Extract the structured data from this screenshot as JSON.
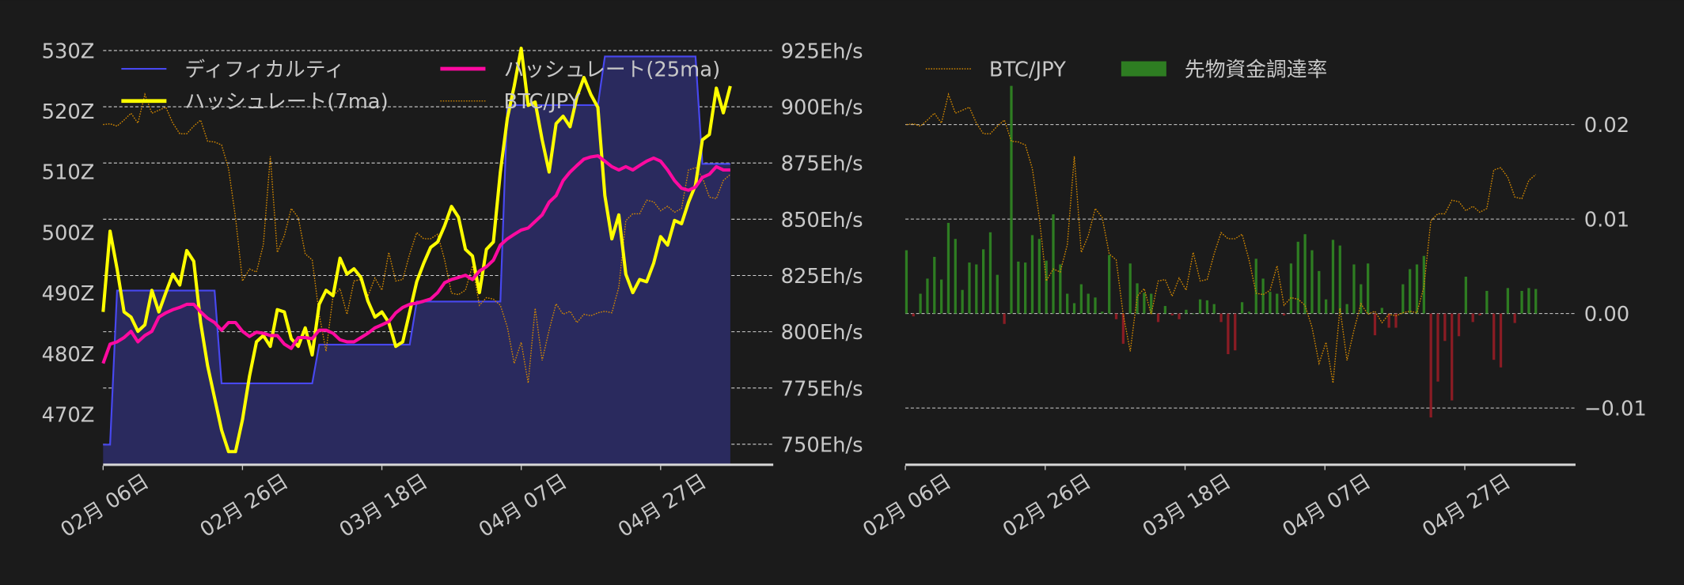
{
  "colors": {
    "background": "#1b1b1b",
    "text": "#c8c8c8",
    "difficulty_line": "#4848f0",
    "difficulty_fill": "#2a2a5e",
    "hashrate_7ma": "#ffff00",
    "hashrate_25ma": "#ff0aa0",
    "btc_jpy": "#d68a00",
    "funding_positive": "#2e7d22",
    "funding_negative": "#8a1c24"
  },
  "chart_data": [
    {
      "type": "line",
      "x": {
        "start": "02-06",
        "end": "05-07",
        "step": "1 day"
      },
      "x_ticks": [
        "02月 06日",
        "02月 26日",
        "03月 18日",
        "04月 07日",
        "04月 27日"
      ],
      "y_left": {
        "ylim": [
          461.7,
          532.1
        ],
        "ticks": [
          "470Z",
          "480Z",
          "490Z",
          "500Z",
          "510Z",
          "520Z",
          "530Z"
        ],
        "tick_values": [
          470,
          480,
          490,
          500,
          510,
          520,
          530
        ]
      },
      "y_right": {
        "ylim": [
          740.9,
          930.7
        ],
        "ticks": [
          "750Eh/s",
          "775Eh/s",
          "800Eh/s",
          "825Eh/s",
          "850Eh/s",
          "875Eh/s",
          "900Eh/s",
          "925Eh/s"
        ],
        "tick_values": [
          750,
          775,
          800,
          825,
          850,
          875,
          900,
          925
        ]
      },
      "y_btc": {
        "ylim": [
          10500000,
          16150000
        ],
        "labels_shown": false
      },
      "grid": "horizontal dashed on right axis ticks",
      "legend": {
        "placement": "top",
        "entries": [
          "ディフィカルティ",
          "ハッシュレート(7ma)",
          "ハッシュレート(25ma)",
          "BTC/JPY"
        ]
      },
      "series": [
        {
          "name": "ディフィカルティ",
          "axis": "left",
          "style": "step-area",
          "values": [
            465.0,
            465.0,
            490.4,
            490.4,
            490.4,
            490.4,
            490.4,
            490.4,
            490.4,
            490.4,
            490.4,
            490.4,
            490.4,
            490.4,
            490.4,
            490.4,
            490.4,
            475.1,
            475.1,
            475.1,
            475.1,
            475.1,
            475.1,
            475.1,
            475.1,
            475.1,
            475.1,
            475.1,
            475.1,
            475.1,
            475.1,
            481.5,
            481.5,
            481.5,
            481.5,
            481.5,
            481.5,
            481.5,
            481.5,
            481.5,
            481.5,
            481.5,
            481.5,
            481.5,
            481.5,
            488.6,
            488.6,
            488.6,
            488.6,
            488.6,
            488.6,
            488.6,
            488.6,
            488.6,
            488.6,
            488.6,
            488.6,
            488.6,
            521.0,
            521.0,
            521.0,
            521.0,
            521.0,
            521.0,
            521.0,
            521.0,
            521.0,
            521.0,
            521.0,
            521.0,
            521.0,
            521.0,
            529.0,
            529.0,
            529.0,
            529.0,
            529.0,
            529.0,
            529.0,
            529.0,
            529.0,
            529.0,
            529.0,
            529.0,
            529.0,
            529.0,
            511.3,
            511.3,
            511.3,
            511.3,
            511.3
          ]
        },
        {
          "name": "ハッシュレート(7ma)",
          "axis": "right",
          "style": "line",
          "values": [
            808.8,
            844.7,
            828.0,
            808.8,
            806.5,
            800.2,
            803.1,
            818.4,
            808.8,
            817.4,
            825.6,
            820.8,
            836.1,
            831.3,
            804.1,
            784.9,
            770.6,
            756.3,
            746.7,
            746.7,
            761.0,
            780.2,
            795.5,
            798.3,
            793.5,
            809.8,
            808.8,
            796.9,
            793.5,
            801.7,
            789.7,
            812.2,
            818.4,
            816.0,
            832.7,
            825.6,
            828.0,
            824.1,
            813.6,
            806.5,
            808.8,
            804.1,
            793.5,
            795.5,
            808.8,
            822.2,
            830.4,
            837.5,
            839.9,
            847.1,
            855.7,
            850.9,
            836.6,
            833.7,
            817.4,
            836.6,
            839.9,
            871.0,
            894.9,
            909.2,
            926.0,
            900.6,
            902.1,
            885.3,
            871.0,
            892.5,
            895.8,
            891.1,
            904.4,
            913.0,
            905.4,
            899.7,
            860.5,
            841.3,
            851.9,
            825.6,
            817.4,
            823.2,
            822.2,
            830.4,
            842.3,
            838.5,
            849.5,
            848.0,
            857.6,
            865.2,
            885.3,
            887.7,
            908.3,
            897.3,
            909.2
          ]
        },
        {
          "name": "ハッシュレート(25ma)",
          "axis": "right",
          "style": "line",
          "values": [
            785.9,
            794.5,
            795.5,
            797.4,
            800.2,
            795.5,
            798.3,
            800.2,
            806.5,
            808.4,
            809.8,
            810.8,
            812.2,
            812.2,
            808.8,
            806.0,
            804.1,
            800.7,
            804.1,
            804.1,
            800.2,
            797.9,
            799.8,
            799.3,
            798.3,
            798.3,
            794.5,
            792.6,
            797.4,
            797.4,
            796.9,
            800.7,
            800.7,
            799.3,
            796.4,
            795.5,
            795.5,
            797.4,
            799.3,
            801.7,
            803.1,
            804.5,
            808.4,
            810.8,
            812.2,
            812.7,
            813.6,
            814.6,
            817.4,
            821.8,
            823.2,
            824.1,
            825.1,
            823.2,
            827.0,
            828.9,
            831.8,
            838.5,
            841.3,
            843.3,
            845.2,
            846.1,
            849.0,
            851.9,
            857.6,
            860.5,
            867.2,
            871.0,
            873.9,
            876.7,
            877.7,
            878.2,
            875.8,
            873.4,
            871.9,
            873.4,
            871.9,
            873.9,
            875.8,
            877.2,
            875.8,
            871.9,
            867.2,
            863.8,
            862.9,
            864.3,
            868.6,
            870.0,
            873.4,
            871.9,
            871.9
          ]
        },
        {
          "name": "BTC/JPY",
          "axis": "hidden",
          "style": "dotted-line",
          "ref": "btc_jpy"
        }
      ]
    },
    {
      "type": "bar",
      "x": {
        "start": "02-06",
        "end": "05-07",
        "step": "1 day"
      },
      "x_ticks": [
        "02月 06日",
        "02月 26日",
        "03月 18日",
        "04月 07日",
        "04月 27日"
      ],
      "y_right": {
        "ylim": [
          -0.016,
          0.0292
        ],
        "ticks": [
          "−0.01",
          "0.00",
          "0.01",
          "0.02"
        ],
        "tick_values": [
          -0.01,
          0,
          0.01,
          0.02
        ]
      },
      "y_btc": {
        "ylim": [
          10500000,
          16150000
        ],
        "labels_shown": false
      },
      "grid": "horizontal dashed",
      "legend": {
        "placement": "top-left",
        "entries": [
          "BTC/JPY",
          "先物資金調達率"
        ]
      },
      "series": [
        {
          "name": "BTC/JPY",
          "axis": "hidden",
          "style": "dotted-line",
          "ref": "btc_jpy"
        },
        {
          "name": "先物資金調達率",
          "axis": "right",
          "style": "bar",
          "values": [
            0.0067,
            -0.0003,
            0.0021,
            0.0037,
            0.006,
            0.0036,
            0.0096,
            0.0079,
            0.0025,
            0.0054,
            0.0052,
            0.0068,
            0.0086,
            0.0041,
            -0.0011,
            0.0241,
            0.0055,
            0.0054,
            0.0083,
            0.0079,
            0.0056,
            0.0105,
            0.0052,
            0.0021,
            0.0011,
            0.0031,
            0.0021,
            0.0017,
            0.0002,
            0.0062,
            -0.0006,
            -0.0032,
            0.0053,
            0.0032,
            0.0022,
            0.0021,
            -0.0009,
            0.0008,
            -0.0002,
            -0.0006,
            0.0004,
            0.0,
            0.0015,
            0.0014,
            0.001,
            -0.0009,
            -0.0043,
            -0.0039,
            0.0012,
            0.0002,
            0.0058,
            0.0037,
            0.0023,
            0.0021,
            -0.0002,
            0.0053,
            0.0076,
            0.0084,
            0.0067,
            0.0045,
            0.0015,
            0.0078,
            0.0072,
            0.001,
            0.0052,
            0.0031,
            0.0053,
            -0.0023,
            0.0006,
            -0.0015,
            -0.0015,
            0.0031,
            0.0047,
            0.0052,
            0.0061,
            -0.011,
            -0.0072,
            -0.0029,
            -0.0092,
            -0.0024,
            0.0039,
            -0.0009,
            -0.0002,
            0.0024,
            -0.0049,
            -0.0057,
            0.0027,
            -0.001,
            0.0024,
            0.0027,
            0.0026
          ]
        }
      ]
    }
  ],
  "btc_jpy": [
    15000000,
    15010000,
    14980000,
    15060000,
    15150000,
    15020000,
    15400000,
    15150000,
    15190000,
    15230000,
    15020000,
    14880000,
    14880000,
    14980000,
    15060000,
    14780000,
    14770000,
    14730000,
    14420000,
    13770000,
    12930000,
    13090000,
    13050000,
    13410000,
    14580000,
    13310000,
    13530000,
    13890000,
    13770000,
    13290000,
    13210000,
    12490000,
    12000000,
    12730000,
    12830000,
    12490000,
    12930000,
    12950000,
    12730000,
    12970000,
    12810000,
    13310000,
    12930000,
    12950000,
    13290000,
    13570000,
    13490000,
    13490000,
    13550000,
    13210000,
    12770000,
    12750000,
    12810000,
    13130000,
    12610000,
    12710000,
    12690000,
    12610000,
    12320000,
    11840000,
    12120000,
    11580000,
    12570000,
    11880000,
    12280000,
    12630000,
    12490000,
    12530000,
    12380000,
    12490000,
    12470000,
    12510000,
    12530000,
    12510000,
    12850000,
    13730000,
    13820000,
    13820000,
    14000000,
    13980000,
    13860000,
    13920000,
    13840000,
    13890000,
    14400000,
    14430000,
    14300000,
    14040000,
    14020000,
    14260000,
    14340000
  ]
}
